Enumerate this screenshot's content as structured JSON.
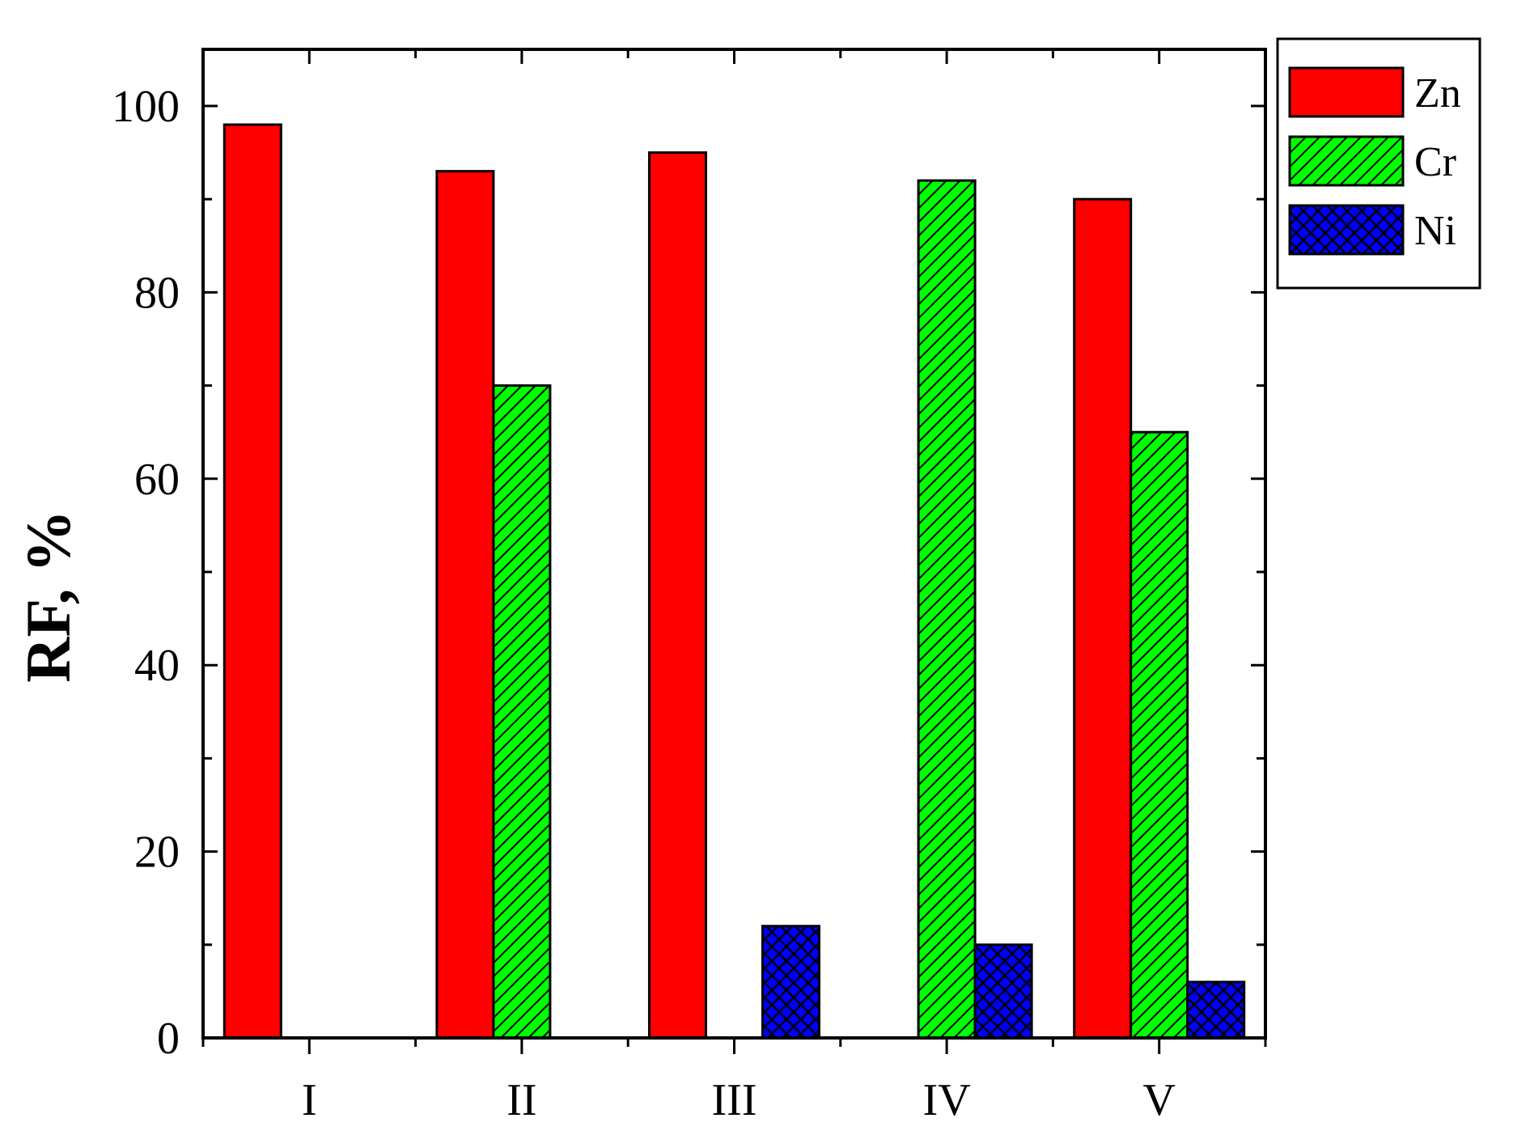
{
  "chart_data": {
    "type": "bar",
    "categories": [
      "I",
      "II",
      "III",
      "IV",
      "V"
    ],
    "series": [
      {
        "name": "Zn",
        "values": [
          98,
          93,
          95,
          0,
          90
        ],
        "color": "#ff0000",
        "pattern": "solid"
      },
      {
        "name": "Cr",
        "values": [
          0,
          70,
          0,
          92,
          65
        ],
        "color": "#00ff00",
        "pattern": "hatch"
      },
      {
        "name": "Ni",
        "values": [
          0,
          0,
          12,
          10,
          6
        ],
        "color": "#0000ff",
        "pattern": "crosshatch"
      }
    ],
    "ylabel": "RF, %",
    "xlabel": "",
    "ylim": [
      0,
      106
    ],
    "yticks": [
      0,
      20,
      40,
      60,
      80,
      100
    ],
    "legend_position": "top-right outside plot",
    "grid": false
  }
}
